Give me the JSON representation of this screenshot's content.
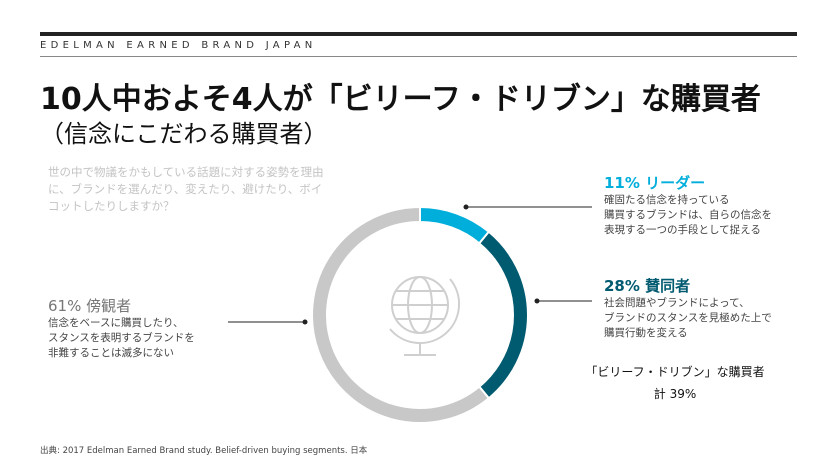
{
  "header": {
    "brand": "EDELMAN EARNED BRAND JAPAN",
    "title": "10人中およそ4人が「ビリーフ・ドリブン」な購買者",
    "subtitle": "（信念にこだわる購買者）"
  },
  "question": "世の中で物議をかもしている話題に対する姿勢を理由に、ブランドを選んだり、変えたり、避けたり、ボイコットしたりしますか？",
  "chart_data": {
    "type": "pie",
    "donut": true,
    "segments": [
      {
        "label": "11% リーダー",
        "value": 11,
        "color": "#00aedb",
        "description": [
          "確固たる信念を持っている",
          "購買するブランドは、自らの信念を",
          "表現する一つの手段として捉える"
        ]
      },
      {
        "label": "28% 賛同者",
        "value": 28,
        "color": "#005a70",
        "description": [
          "社会問題やブランドによって、",
          "ブランドのスタンスを見極めた上で",
          "購買行動を変える"
        ]
      },
      {
        "label": "61% 傍観者",
        "value": 61,
        "color": "#c8c8c8",
        "description": [
          "信念をベースに購買したり、",
          "スタンスを表明するブランドを",
          "非難することは滅多にない"
        ]
      }
    ],
    "center_icon": "globe-icon",
    "total": {
      "line1": "「ビリーフ・ドリブン」な購買者",
      "line2": "計 39%"
    }
  },
  "source": "出典: 2017 Edelman Earned Brand study. Belief-driven buying segments. 日本"
}
